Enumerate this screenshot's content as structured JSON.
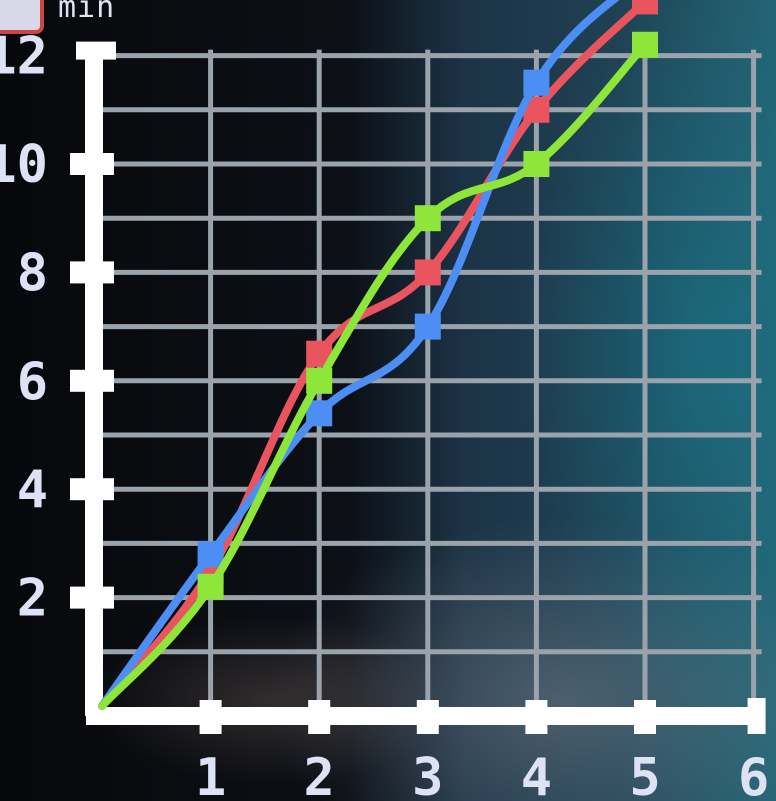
{
  "header": {
    "caption": "min"
  },
  "colors": {
    "red": "#e9545e",
    "blue": "#4d8ef5",
    "green": "#8ee63a",
    "grid": "#9aa3ab",
    "axis": "#ffffff"
  },
  "chart_data": {
    "type": "line",
    "title": "",
    "xlabel": "",
    "ylabel": "",
    "xlim": [
      0,
      6
    ],
    "ylim": [
      0,
      12
    ],
    "x_ticks": [
      "1",
      "2",
      "3",
      "4",
      "5",
      "6"
    ],
    "y_ticks": [
      "2",
      "4",
      "6",
      "8",
      "10",
      "12"
    ],
    "grid": true,
    "series": [
      {
        "color": "#e9545e",
        "x": [
          0,
          1,
          2,
          3,
          4,
          5
        ],
        "y": [
          0,
          2.5,
          6.5,
          8,
          11,
          13
        ]
      },
      {
        "color": "#4d8ef5",
        "x": [
          0,
          1,
          2,
          3,
          4,
          5
        ],
        "y": [
          0,
          2.8,
          5.4,
          7,
          11.5,
          13.5
        ]
      },
      {
        "color": "#8ee63a",
        "x": [
          0,
          1,
          2,
          3,
          4,
          5
        ],
        "y": [
          0,
          2.2,
          6,
          9,
          10,
          12.2
        ]
      }
    ]
  }
}
